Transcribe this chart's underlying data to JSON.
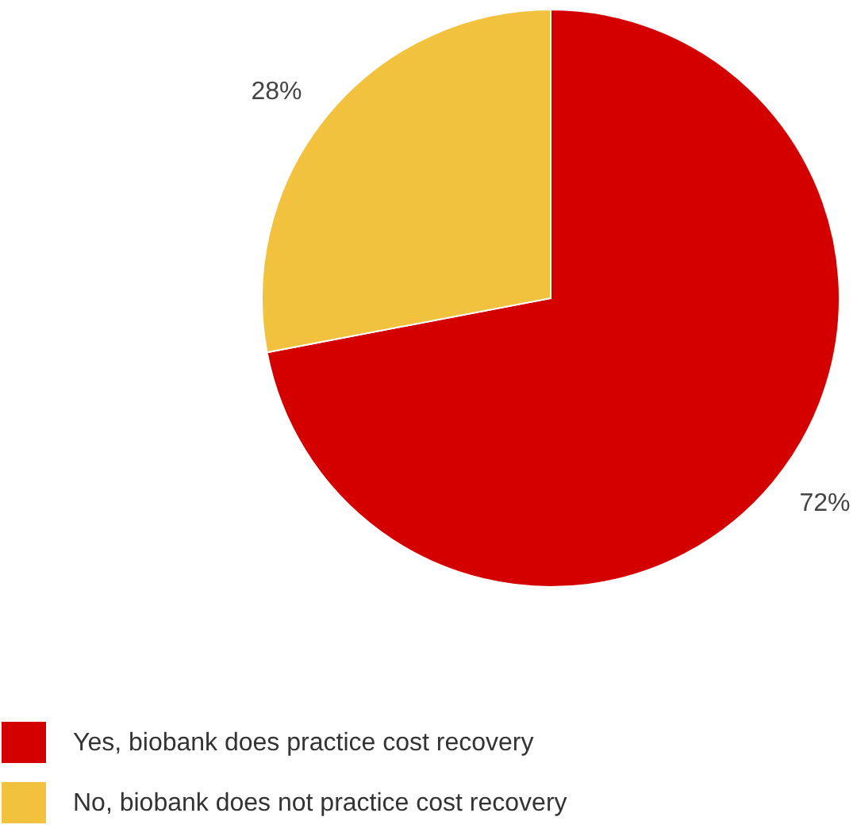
{
  "chart_data": {
    "type": "pie",
    "categories": [
      "Yes, biobank does practice cost recovery",
      "No, biobank does not practice cost recovery"
    ],
    "values": [
      72,
      28
    ],
    "colors": [
      "#d40000",
      "#f2c23e"
    ],
    "value_labels": [
      "72%",
      "28%"
    ],
    "legend": "bottom left"
  }
}
